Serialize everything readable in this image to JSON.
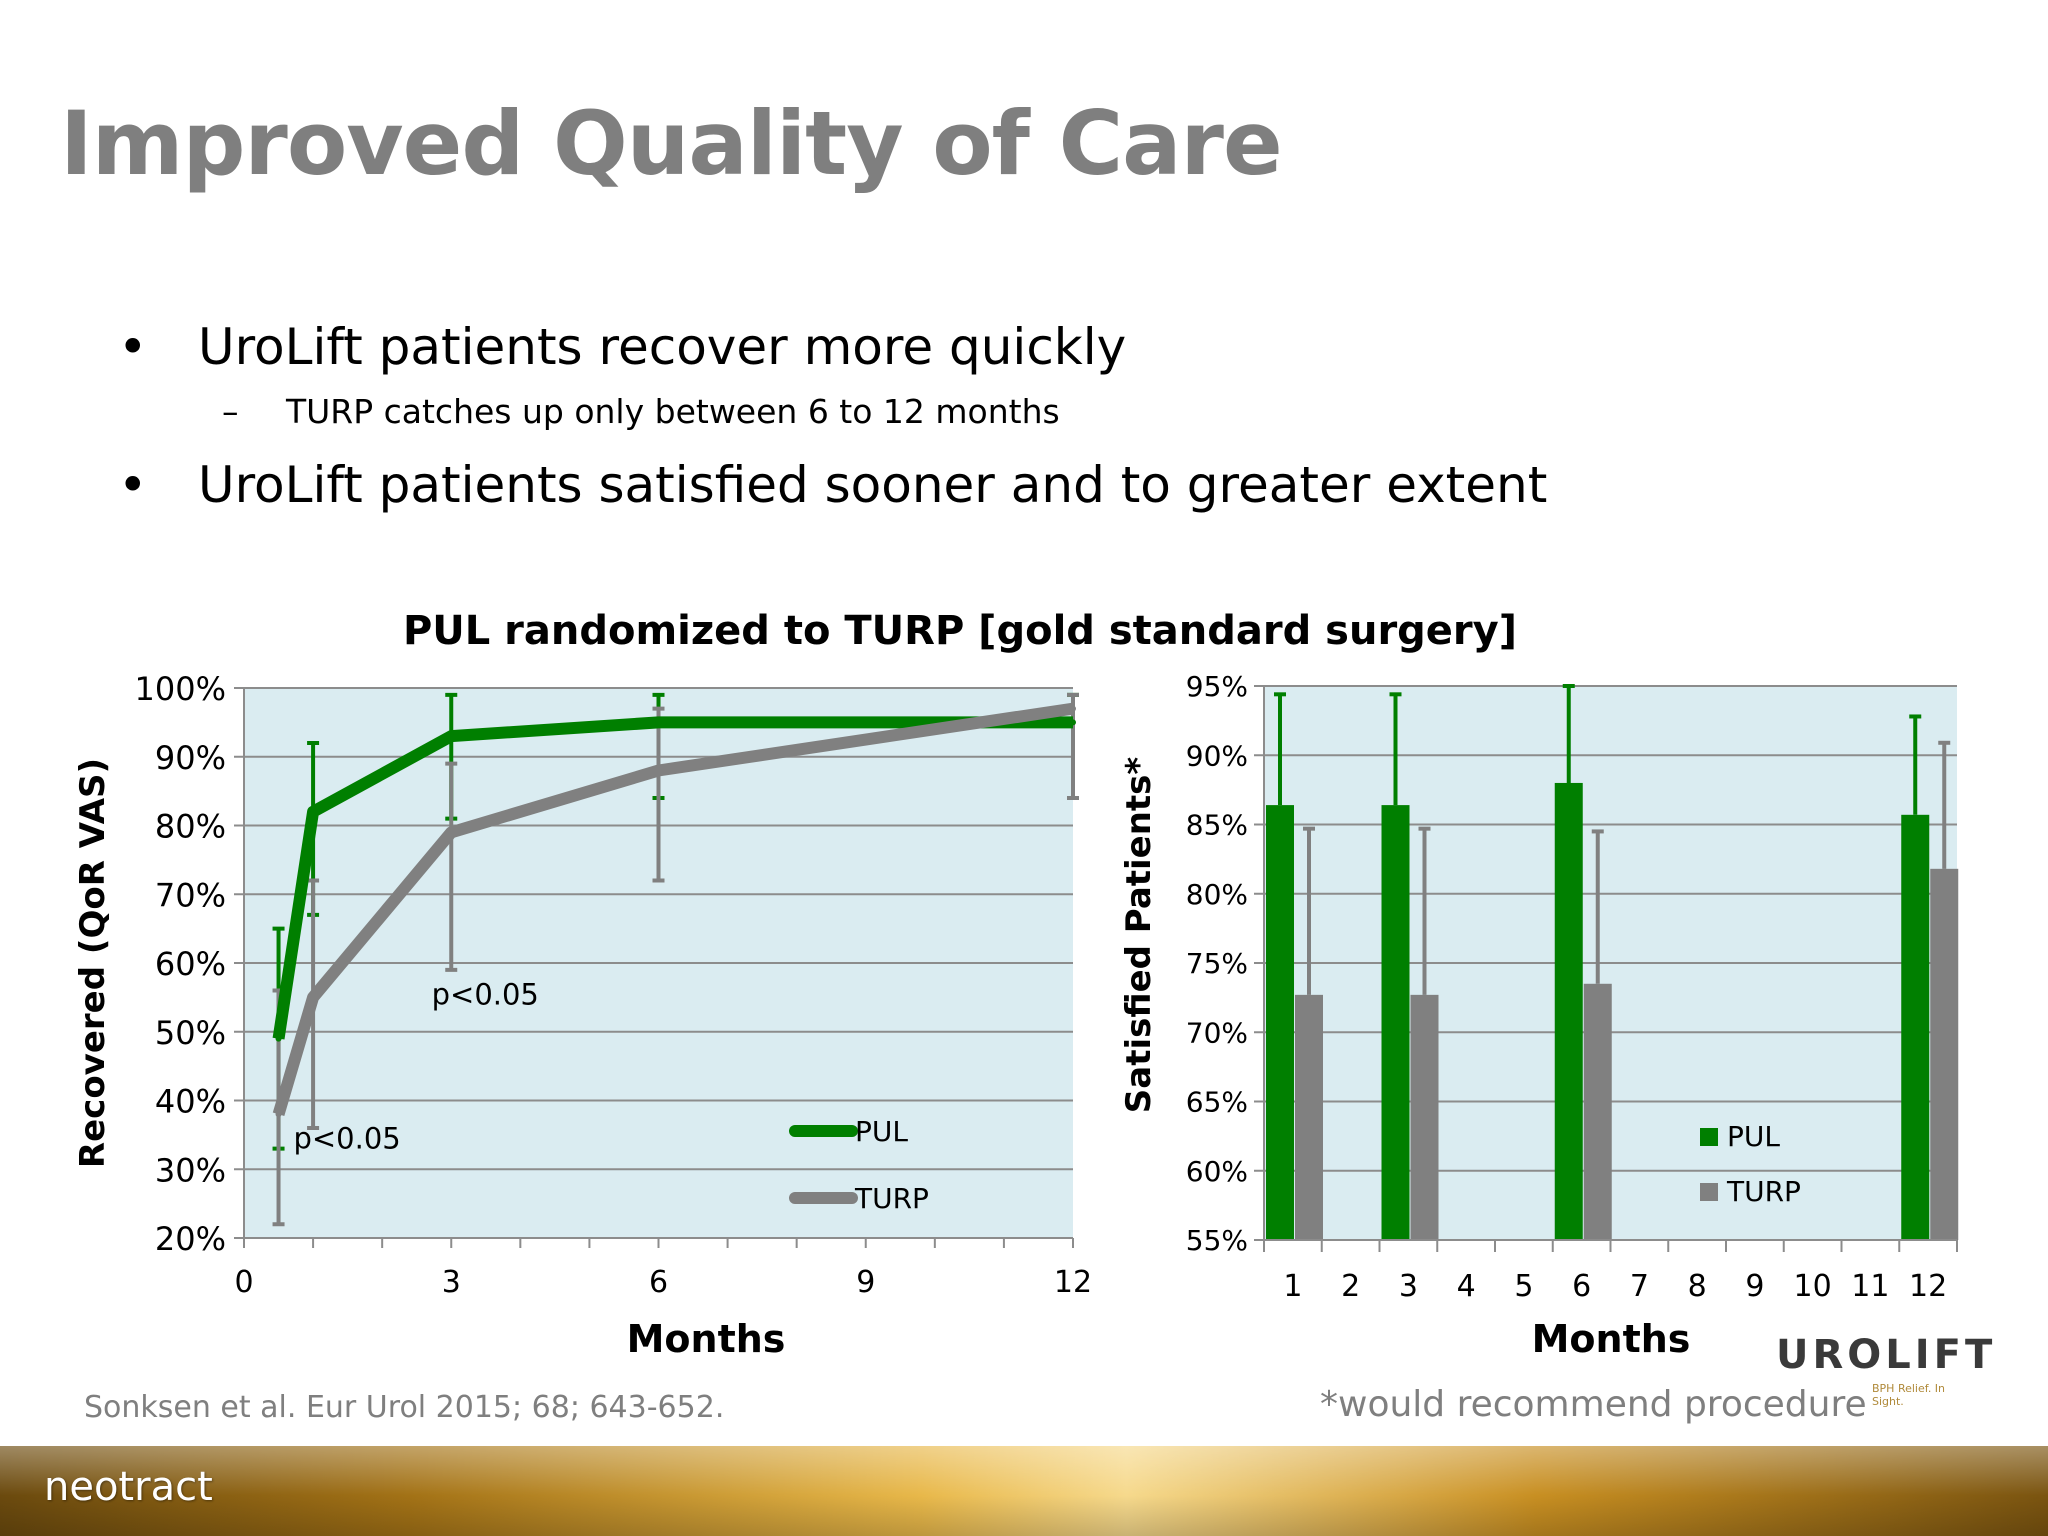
{
  "title": "Improved Quality of Care",
  "bullets": [
    {
      "text": "UroLift patients recover more quickly"
    },
    {
      "text": "UroLift patients satisfied sooner and to greater extent"
    }
  ],
  "subbullet": "TURP catches up only between 6 to 12 months",
  "bullet_glyph": "•",
  "dash_glyph": "–",
  "citation": "Sonksen et al. Eur Urol 2015; 68; 643-652.",
  "footnote": "*would recommend procedure",
  "logos": {
    "urolift": "UROLIFT",
    "urolift_tagline": "BPH Relief. In Sight.",
    "neotract": "neotract"
  },
  "colors": {
    "pul": "#007f00",
    "turp": "#808080",
    "plot_bg": "#daecf1",
    "grid": "#8c8c8c"
  },
  "chart_data": [
    {
      "type": "line",
      "title": "PUL randomized to TURP [gold standard surgery]",
      "xlabel": "Months",
      "ylabel": "Recovered (QoR VAS)",
      "xlim": [
        0,
        12
      ],
      "ylim": [
        20,
        100
      ],
      "x_ticks": [
        0,
        3,
        6,
        9,
        12
      ],
      "x_tick_labels": [
        "0",
        "3",
        "6",
        "9",
        "12"
      ],
      "y_ticks": [
        20,
        30,
        40,
        50,
        60,
        70,
        80,
        90,
        100
      ],
      "y_tick_labels": [
        "20%",
        "30%",
        "40%",
        "50%",
        "60%",
        "70%",
        "80%",
        "90%",
        "100%"
      ],
      "grid": true,
      "legend_position": "bottom-right",
      "series": [
        {
          "name": "PUL",
          "x": [
            0.5,
            1,
            3,
            6,
            12
          ],
          "y": [
            49,
            82,
            93,
            95,
            95
          ],
          "err_low": [
            33,
            67,
            81,
            84,
            84
          ],
          "err_high": [
            65,
            92,
            99,
            99,
            99
          ]
        },
        {
          "name": "TURP",
          "x": [
            0.5,
            1,
            3,
            6,
            12
          ],
          "y": [
            38,
            55,
            79,
            88,
            97
          ],
          "err_low": [
            22,
            36,
            59,
            72,
            84
          ],
          "err_high": [
            56,
            72,
            89,
            97,
            99
          ]
        }
      ],
      "annotations": [
        {
          "text": "p<0.05",
          "x": 0.6,
          "y": 33
        },
        {
          "text": "p<0.05",
          "x": 2.6,
          "y": 54
        }
      ]
    },
    {
      "type": "bar",
      "xlabel": "Months",
      "ylabel": "Satisfied Patients*",
      "categories": [
        "1",
        "2",
        "3",
        "4",
        "5",
        "6",
        "7",
        "8",
        "9",
        "10",
        "11",
        "12"
      ],
      "ylim": [
        55,
        95
      ],
      "y_ticks": [
        55,
        60,
        65,
        70,
        75,
        80,
        85,
        90,
        95
      ],
      "y_tick_labels": [
        "55%",
        "60%",
        "65%",
        "70%",
        "75%",
        "80%",
        "85%",
        "90%",
        "95%"
      ],
      "grid": true,
      "legend_position": "bottom-right",
      "series": [
        {
          "name": "PUL",
          "values": [
            86.4,
            null,
            86.4,
            null,
            null,
            88.0,
            null,
            null,
            null,
            null,
            null,
            85.7
          ],
          "err_high": [
            94.4,
            null,
            94.4,
            null,
            null,
            95.0,
            null,
            null,
            null,
            null,
            null,
            92.8
          ]
        },
        {
          "name": "TURP",
          "values": [
            72.7,
            null,
            72.7,
            null,
            null,
            73.5,
            null,
            null,
            null,
            null,
            null,
            81.8
          ],
          "err_high": [
            84.7,
            null,
            84.7,
            null,
            null,
            84.5,
            null,
            null,
            null,
            null,
            null,
            90.9
          ]
        }
      ]
    }
  ]
}
